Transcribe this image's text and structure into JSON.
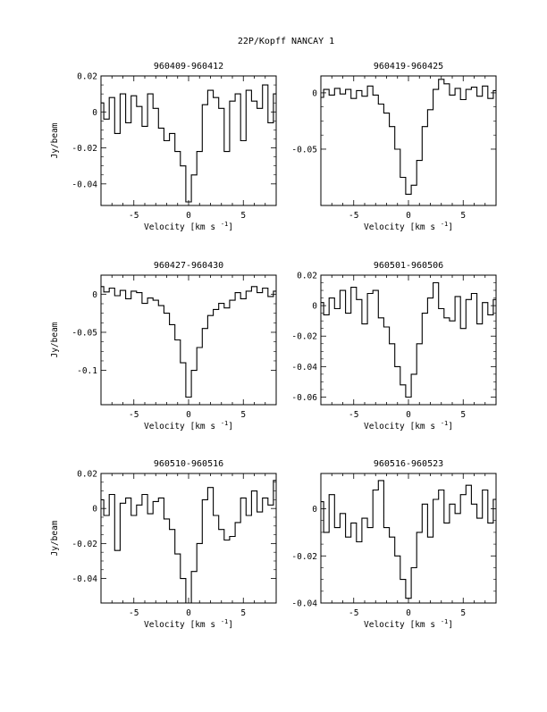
{
  "header": {
    "title": "22P/Kopff   NANCAY      1"
  },
  "chart_data": [
    {
      "type": "line",
      "title": "960409-960412",
      "xlabel": "Velocity [km s",
      "xlabel_sup": "-1",
      "xlabel_close": "]",
      "ylabel": "Jy/beam",
      "xlim": [
        -8,
        8
      ],
      "ylim": [
        -0.052,
        0.02
      ],
      "xticks": [
        -5,
        0,
        5
      ],
      "xtick_labels": [
        "-5",
        "0",
        "5"
      ],
      "yticks": [
        -0.04,
        -0.02,
        0,
        0.02
      ],
      "ytick_labels": [
        "-0.04",
        "-0.02",
        "0",
        "0.02"
      ],
      "series": [
        {
          "x": [
            -8,
            -7.5,
            -7,
            -6.5,
            -6,
            -5.5,
            -5,
            -4.5,
            -4,
            -3.5,
            -3,
            -2.5,
            -2,
            -1.5,
            -1,
            -0.5,
            0,
            0.5,
            1,
            1.5,
            2,
            2.5,
            3,
            3.5,
            4,
            4.5,
            5,
            5.5,
            6,
            6.5,
            7,
            7.5,
            8
          ],
          "y": [
            0.005,
            -0.004,
            0.008,
            -0.012,
            0.01,
            -0.006,
            0.009,
            0.003,
            -0.008,
            0.01,
            0.002,
            -0.009,
            -0.016,
            -0.012,
            -0.022,
            -0.03,
            -0.05,
            -0.035,
            -0.022,
            0.004,
            0.012,
            0.008,
            0.002,
            -0.022,
            0.006,
            0.01,
            -0.016,
            0.012,
            0.006,
            0.002,
            0.015,
            -0.006,
            0.01
          ]
        }
      ]
    },
    {
      "type": "line",
      "title": "960419-960425",
      "xlabel": "Velocity [km s",
      "xlabel_sup": "-1",
      "xlabel_close": "]",
      "ylabel": "",
      "xlim": [
        -8,
        8
      ],
      "ylim": [
        -0.1,
        0.015
      ],
      "xticks": [
        -5,
        0,
        5
      ],
      "xtick_labels": [
        "-5",
        "0",
        "5"
      ],
      "yticks": [
        -0.05,
        0
      ],
      "ytick_labels": [
        "-0.05",
        "0"
      ],
      "series": [
        {
          "x": [
            -8,
            -7.5,
            -7,
            -6.5,
            -6,
            -5.5,
            -5,
            -4.5,
            -4,
            -3.5,
            -3,
            -2.5,
            -2,
            -1.5,
            -1,
            -0.5,
            0,
            0.5,
            1,
            1.5,
            2,
            2.5,
            3,
            3.5,
            4,
            4.5,
            5,
            5.5,
            6,
            6.5,
            7,
            7.5,
            8
          ],
          "y": [
            -0.004,
            0.003,
            -0.002,
            0.004,
            -0.001,
            0.003,
            -0.005,
            0.002,
            -0.003,
            0.006,
            -0.002,
            -0.01,
            -0.018,
            -0.03,
            -0.05,
            -0.075,
            -0.09,
            -0.082,
            -0.06,
            -0.03,
            -0.015,
            0.003,
            0.012,
            0.008,
            -0.002,
            0.004,
            -0.006,
            0.003,
            0.005,
            -0.003,
            0.006,
            -0.005,
            0.002
          ]
        }
      ]
    },
    {
      "type": "line",
      "title": "960427-960430",
      "xlabel": "Velocity [km s",
      "xlabel_sup": "-1",
      "xlabel_close": "]",
      "ylabel": "Jy/beam",
      "xlim": [
        -8,
        8
      ],
      "ylim": [
        -0.145,
        0.025
      ],
      "xticks": [
        -5,
        0,
        5
      ],
      "xtick_labels": [
        "-5",
        "0",
        "5"
      ],
      "yticks": [
        -0.1,
        -0.05,
        0
      ],
      "ytick_labels": [
        "-0.1",
        "-0.05",
        "0"
      ],
      "series": [
        {
          "x": [
            -8,
            -7.5,
            -7,
            -6.5,
            -6,
            -5.5,
            -5,
            -4.5,
            -4,
            -3.5,
            -3,
            -2.5,
            -2,
            -1.5,
            -1,
            -0.5,
            0,
            0.5,
            1,
            1.5,
            2,
            2.5,
            3,
            3.5,
            4,
            4.5,
            5,
            5.5,
            6,
            6.5,
            7,
            7.5,
            8
          ],
          "y": [
            0.01,
            0.003,
            0.008,
            -0.002,
            0.005,
            -0.006,
            0.004,
            0.002,
            -0.012,
            -0.005,
            -0.008,
            -0.015,
            -0.025,
            -0.04,
            -0.06,
            -0.09,
            -0.135,
            -0.1,
            -0.07,
            -0.045,
            -0.028,
            -0.02,
            -0.012,
            -0.018,
            -0.008,
            0.002,
            -0.006,
            0.004,
            0.01,
            0.002,
            0.008,
            -0.003,
            0.004
          ]
        }
      ]
    },
    {
      "type": "line",
      "title": "960501-960506",
      "xlabel": "Velocity [km s",
      "xlabel_sup": "-1",
      "xlabel_close": "]",
      "ylabel": "",
      "xlim": [
        -8,
        8
      ],
      "ylim": [
        -0.065,
        0.02
      ],
      "xticks": [
        -5,
        0,
        5
      ],
      "xtick_labels": [
        "-5",
        "0",
        "5"
      ],
      "yticks": [
        -0.06,
        -0.04,
        -0.02,
        0,
        0.02
      ],
      "ytick_labels": [
        "-0.06",
        "-0.04",
        "-0.02",
        "0",
        "0.02"
      ],
      "series": [
        {
          "x": [
            -8,
            -7.5,
            -7,
            -6.5,
            -6,
            -5.5,
            -5,
            -4.5,
            -4,
            -3.5,
            -3,
            -2.5,
            -2,
            -1.5,
            -1,
            -0.5,
            0,
            0.5,
            1,
            1.5,
            2,
            2.5,
            3,
            3.5,
            4,
            4.5,
            5,
            5.5,
            6,
            6.5,
            7,
            7.5,
            8
          ],
          "y": [
            0.002,
            -0.006,
            0.005,
            -0.002,
            0.01,
            -0.005,
            0.012,
            0.004,
            -0.012,
            0.008,
            0.01,
            -0.008,
            -0.014,
            -0.025,
            -0.04,
            -0.052,
            -0.06,
            -0.045,
            -0.025,
            -0.005,
            0.005,
            0.015,
            -0.002,
            -0.008,
            -0.01,
            0.006,
            -0.015,
            0.004,
            0.008,
            -0.012,
            0.002,
            -0.006,
            0.004
          ]
        }
      ]
    },
    {
      "type": "line",
      "title": "960510-960516",
      "xlabel": "Velocity [km s",
      "xlabel_sup": "-1",
      "xlabel_close": "]",
      "ylabel": "Jy/beam",
      "xlim": [
        -8,
        8
      ],
      "ylim": [
        -0.054,
        0.02
      ],
      "xticks": [
        -5,
        0,
        5
      ],
      "xtick_labels": [
        "-5",
        "0",
        "5"
      ],
      "yticks": [
        -0.04,
        -0.02,
        0,
        0.02
      ],
      "ytick_labels": [
        "-0.04",
        "-0.02",
        "0",
        "0.02"
      ],
      "series": [
        {
          "x": [
            -8,
            -7.5,
            -7,
            -6.5,
            -6,
            -5.5,
            -5,
            -4.5,
            -4,
            -3.5,
            -3,
            -2.5,
            -2,
            -1.5,
            -1,
            -0.5,
            0,
            0.5,
            1,
            1.5,
            2,
            2.5,
            3,
            3.5,
            4,
            4.5,
            5,
            5.5,
            6,
            6.5,
            7,
            7.5,
            8
          ],
          "y": [
            0.005,
            -0.004,
            0.008,
            -0.024,
            0.003,
            0.006,
            -0.004,
            0.002,
            0.008,
            -0.003,
            0.004,
            0.006,
            -0.006,
            -0.012,
            -0.026,
            -0.04,
            -0.054,
            -0.036,
            -0.02,
            0.005,
            0.012,
            -0.004,
            -0.012,
            -0.018,
            -0.016,
            -0.008,
            0.006,
            -0.004,
            0.01,
            -0.002,
            0.006,
            0.002,
            0.016
          ]
        }
      ]
    },
    {
      "type": "line",
      "title": "960516-960523",
      "xlabel": "Velocity [km s",
      "xlabel_sup": "-1",
      "xlabel_close": "]",
      "ylabel": "",
      "xlim": [
        -8,
        8
      ],
      "ylim": [
        -0.04,
        0.015
      ],
      "xticks": [
        -5,
        0,
        5
      ],
      "xtick_labels": [
        "-5",
        "0",
        "5"
      ],
      "yticks": [
        -0.04,
        -0.02,
        0
      ],
      "ytick_labels": [
        "-0.04",
        "-0.02",
        "0"
      ],
      "series": [
        {
          "x": [
            -8,
            -7.5,
            -7,
            -6.5,
            -6,
            -5.5,
            -5,
            -4.5,
            -4,
            -3.5,
            -3,
            -2.5,
            -2,
            -1.5,
            -1,
            -0.5,
            0,
            0.5,
            1,
            1.5,
            2,
            2.5,
            3,
            3.5,
            4,
            4.5,
            5,
            5.5,
            6,
            6.5,
            7,
            7.5,
            8
          ],
          "y": [
            0.003,
            -0.01,
            0.006,
            -0.008,
            -0.002,
            -0.012,
            -0.006,
            -0.014,
            -0.004,
            -0.008,
            0.008,
            0.012,
            -0.008,
            -0.012,
            -0.02,
            -0.03,
            -0.038,
            -0.025,
            -0.01,
            0.002,
            -0.012,
            0.004,
            0.008,
            -0.006,
            0.002,
            -0.002,
            0.006,
            0.01,
            0.002,
            -0.004,
            0.008,
            -0.006,
            0.004
          ]
        }
      ]
    }
  ]
}
